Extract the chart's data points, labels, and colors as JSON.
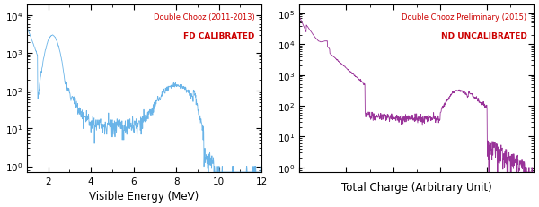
{
  "left_title_line1": "Double Chooz (2011-2013)",
  "left_title_line2": "FD CALIBRATED",
  "right_title_line1": "Double Chooz Preliminary (2015)",
  "right_title_line2": "ND UNCALIBRATED",
  "left_xlabel": "Visible Energy (MeV)",
  "right_xlabel": "Total Charge (Arbitrary Unit)",
  "left_xlim": [
    1.0,
    12.0
  ],
  "right_xlim": [
    0.0,
    1.0
  ],
  "left_ylim": [
    0.7,
    20000
  ],
  "right_ylim": [
    0.7,
    200000
  ],
  "line_color_left": "#6ab4e8",
  "line_color_right": "#993399",
  "title_color": "#cc0000",
  "bg_color": "#ffffff",
  "figsize": [
    6.0,
    2.32
  ],
  "dpi": 100
}
